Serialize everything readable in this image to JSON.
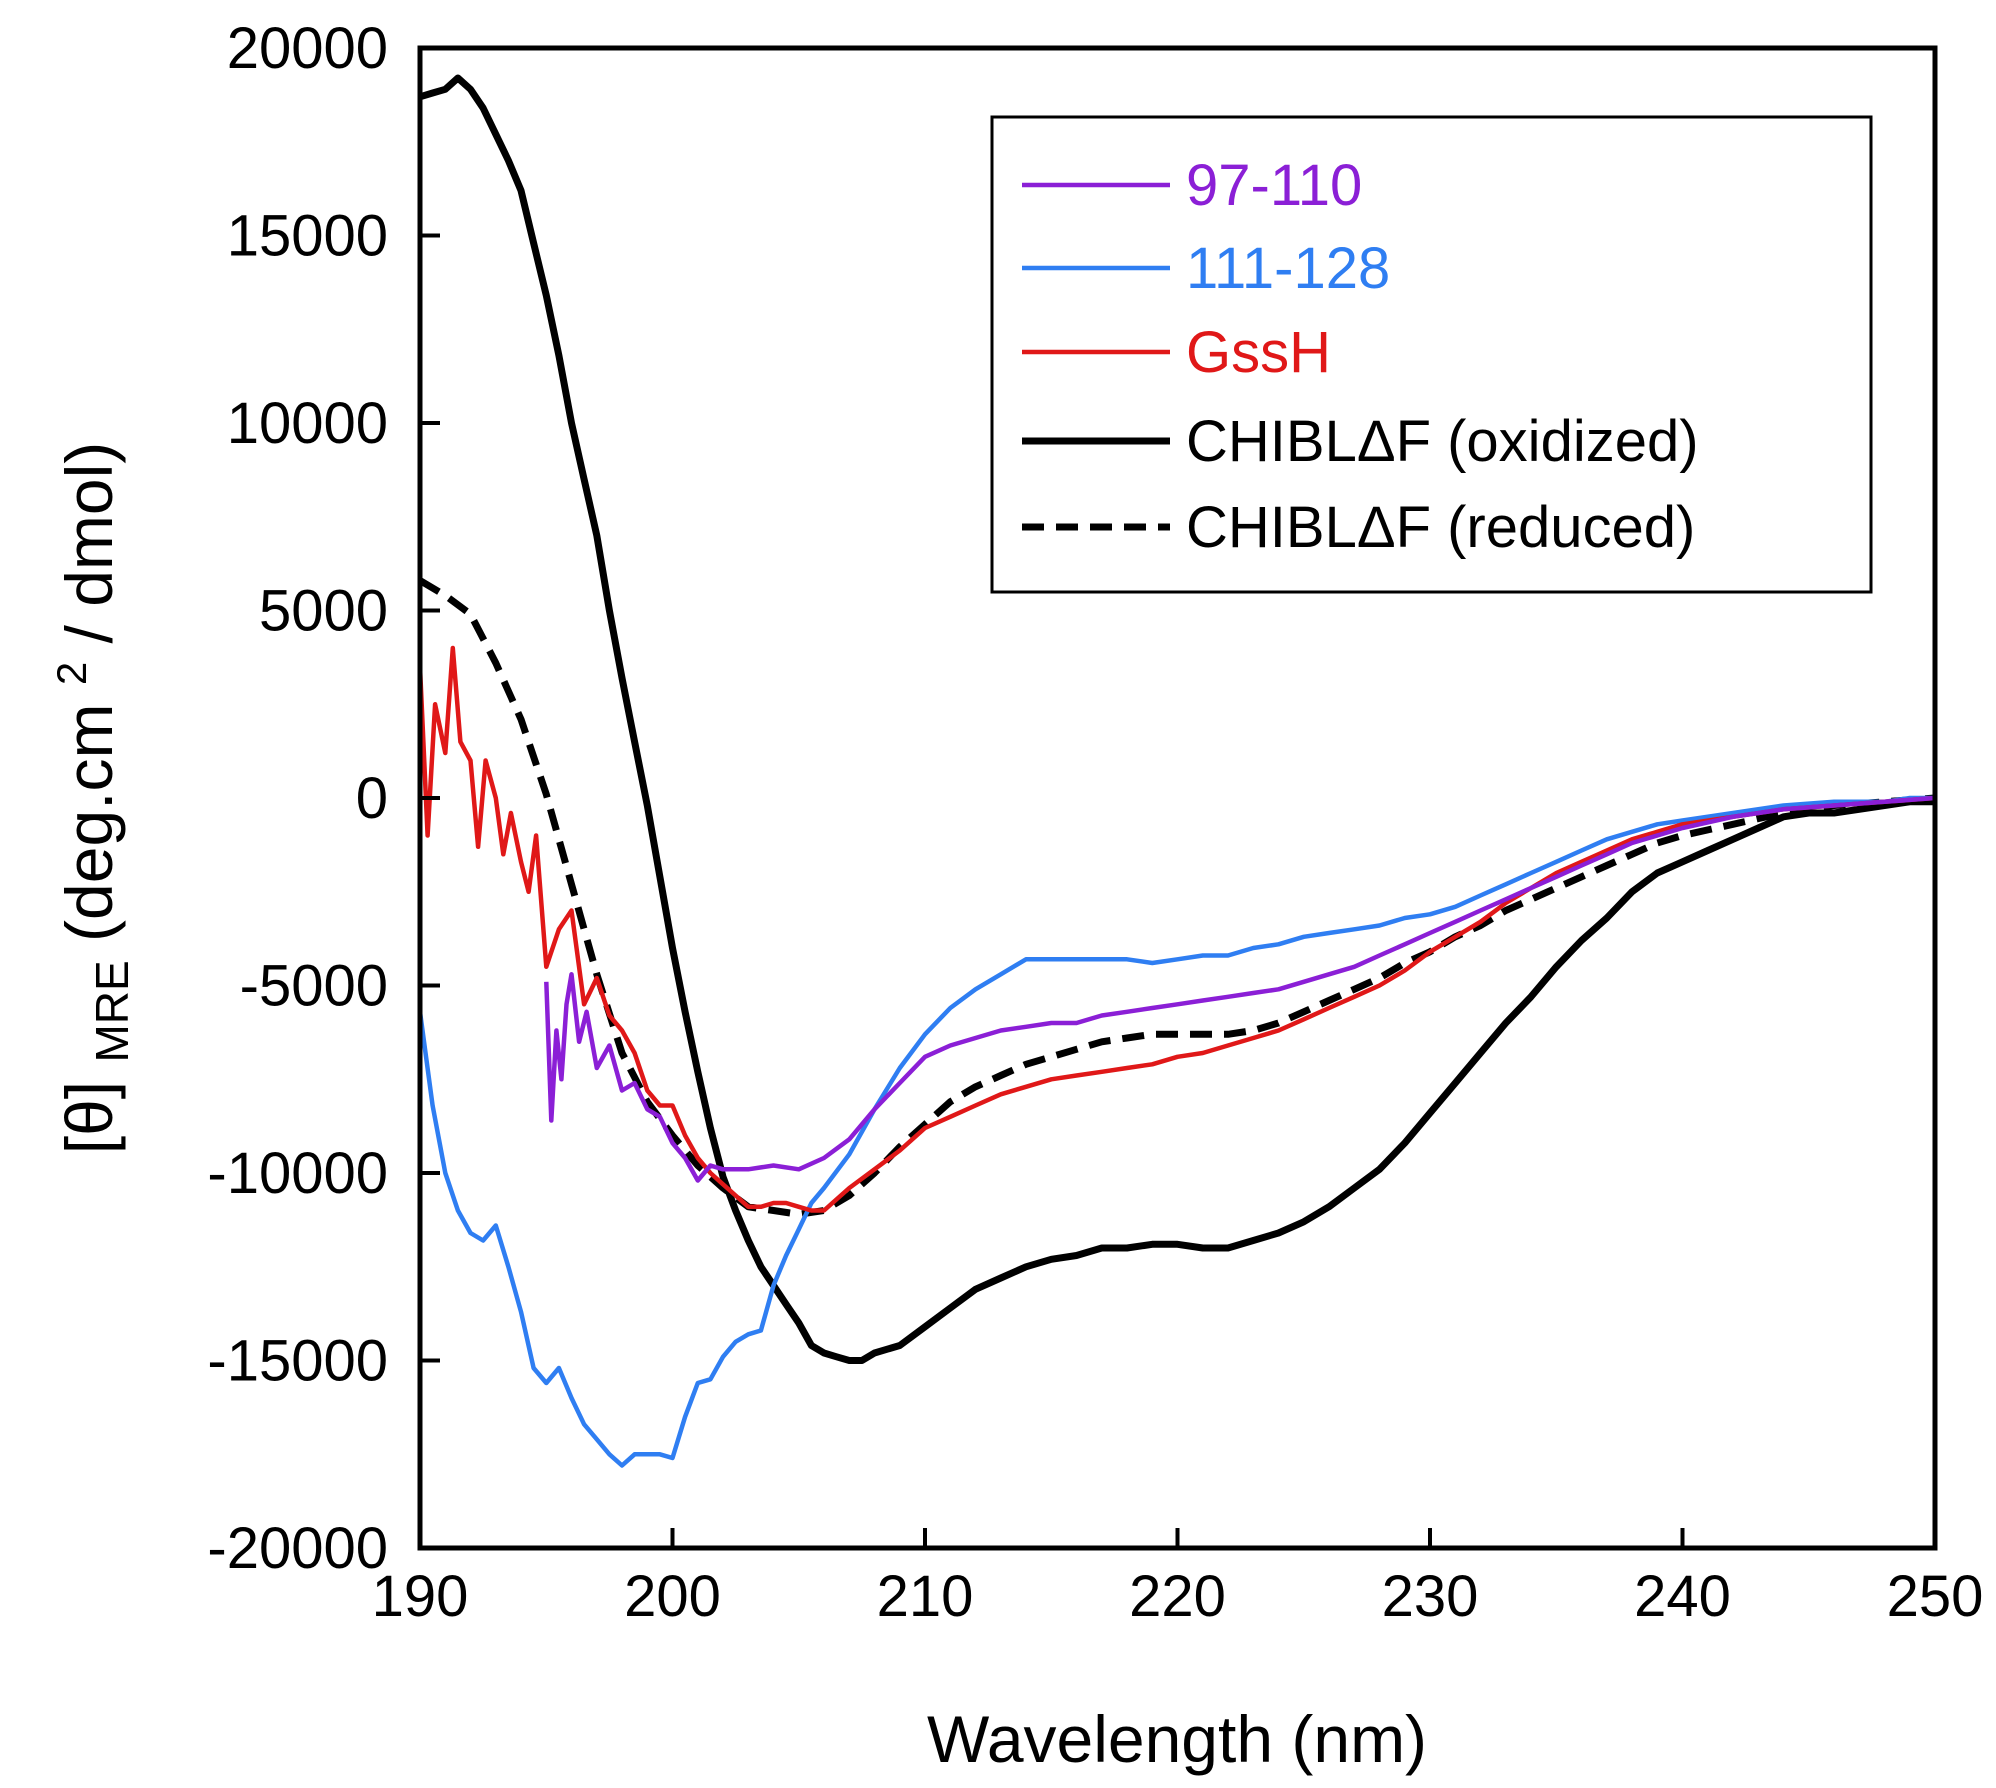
{
  "chart_data": {
    "type": "line",
    "xlabel": "Wavelength (nm)",
    "ylabel": {
      "prefix": "[θ]",
      "subscript": "MRE",
      "body": " (deg.cm",
      "superscript": "2",
      "suffix": " / dmol)"
    },
    "xlim": [
      190,
      250
    ],
    "ylim": [
      -20000,
      20000
    ],
    "x_ticks": [
      190,
      200,
      210,
      220,
      230,
      240,
      250
    ],
    "y_ticks": [
      -20000,
      -15000,
      -10000,
      -5000,
      0,
      5000,
      10000,
      15000,
      20000
    ],
    "grid": false,
    "legend_position": "top-right",
    "series": [
      {
        "name": "97-110",
        "color": "#8b1fd6",
        "style": "solid",
        "x": [
          195.0,
          195.2,
          195.4,
          195.6,
          195.8,
          196.0,
          196.3,
          196.6,
          197.0,
          197.5,
          198.0,
          198.5,
          199.0,
          199.5,
          200.0,
          200.5,
          201.0,
          201.5,
          202.0,
          203.0,
          204.0,
          205.0,
          206.0,
          207.0,
          208.0,
          209.0,
          210.0,
          211.0,
          212.0,
          213.0,
          214.0,
          215.0,
          216.0,
          217.0,
          218.0,
          219.0,
          220.0,
          221.0,
          222.0,
          223.0,
          224.0,
          225.0,
          226.0,
          227.0,
          228.0,
          229.0,
          230.0,
          231.0,
          232.0,
          233.0,
          234.0,
          235.0,
          236.0,
          237.0,
          238.0,
          239.0,
          240.0,
          242.0,
          244.0,
          246.0,
          248.0,
          250.0
        ],
        "y": [
          -4900,
          -8600,
          -6200,
          -7500,
          -5500,
          -4700,
          -6500,
          -5700,
          -7200,
          -6600,
          -7800,
          -7600,
          -8300,
          -8500,
          -9200,
          -9600,
          -10200,
          -9800,
          -9900,
          -9900,
          -9800,
          -9900,
          -9600,
          -9100,
          -8300,
          -7600,
          -6900,
          -6600,
          -6400,
          -6200,
          -6100,
          -6000,
          -6000,
          -5800,
          -5700,
          -5600,
          -5500,
          -5400,
          -5300,
          -5200,
          -5100,
          -4900,
          -4700,
          -4500,
          -4200,
          -3900,
          -3600,
          -3300,
          -3000,
          -2700,
          -2400,
          -2100,
          -1800,
          -1500,
          -1200,
          -1000,
          -800,
          -500,
          -300,
          -200,
          -100,
          0
        ]
      },
      {
        "name": "111-128",
        "color": "#2f7ef2",
        "style": "solid",
        "x": [
          190.0,
          190.5,
          191.0,
          191.5,
          192.0,
          192.5,
          193.0,
          193.5,
          194.0,
          194.5,
          195.0,
          195.5,
          196.0,
          196.5,
          197.0,
          197.5,
          198.0,
          198.5,
          199.0,
          199.5,
          200.0,
          200.5,
          201.0,
          201.5,
          202.0,
          202.5,
          203.0,
          203.5,
          204.0,
          204.5,
          205.0,
          205.5,
          206.0,
          207.0,
          208.0,
          209.0,
          210.0,
          211.0,
          212.0,
          213.0,
          214.0,
          215.0,
          216.0,
          217.0,
          218.0,
          219.0,
          220.0,
          221.0,
          222.0,
          223.0,
          224.0,
          225.0,
          226.0,
          227.0,
          228.0,
          229.0,
          230.0,
          231.0,
          232.0,
          233.0,
          234.0,
          235.0,
          236.0,
          237.0,
          238.0,
          239.0,
          240.0,
          242.0,
          244.0,
          246.0,
          248.0,
          249.0,
          250.0
        ],
        "y": [
          -5700,
          -8200,
          -10000,
          -11000,
          -11600,
          -11800,
          -11400,
          -12500,
          -13700,
          -15200,
          -15600,
          -15200,
          -16000,
          -16700,
          -17100,
          -17500,
          -17800,
          -17500,
          -17500,
          -17500,
          -17600,
          -16500,
          -15600,
          -15500,
          -14900,
          -14500,
          -14300,
          -14200,
          -13000,
          -12200,
          -11500,
          -10800,
          -10400,
          -9500,
          -8300,
          -7200,
          -6300,
          -5600,
          -5100,
          -4700,
          -4300,
          -4300,
          -4300,
          -4300,
          -4300,
          -4400,
          -4300,
          -4200,
          -4200,
          -4000,
          -3900,
          -3700,
          -3600,
          -3500,
          -3400,
          -3200,
          -3100,
          -2900,
          -2600,
          -2300,
          -2000,
          -1700,
          -1400,
          -1100,
          -900,
          -700,
          -600,
          -400,
          -200,
          -100,
          -100,
          0,
          0
        ]
      },
      {
        "name": "GssH",
        "color": "#e01818",
        "style": "solid",
        "x": [
          190.0,
          190.3,
          190.6,
          191.0,
          191.3,
          191.6,
          192.0,
          192.3,
          192.6,
          193.0,
          193.3,
          193.6,
          194.0,
          194.3,
          194.6,
          195.0,
          195.5,
          196.0,
          196.5,
          197.0,
          197.5,
          198.0,
          198.5,
          199.0,
          199.5,
          200.0,
          200.5,
          201.0,
          201.5,
          202.0,
          202.5,
          203.0,
          203.5,
          204.0,
          204.5,
          205.0,
          205.5,
          206.0,
          207.0,
          208.0,
          209.0,
          210.0,
          211.0,
          212.0,
          213.0,
          214.0,
          215.0,
          216.0,
          217.0,
          218.0,
          219.0,
          220.0,
          221.0,
          222.0,
          223.0,
          224.0,
          225.0,
          226.0,
          227.0,
          228.0,
          229.0,
          230.0,
          231.0,
          232.0,
          233.0,
          234.0,
          235.0,
          236.0,
          237.0,
          238.0,
          239.0,
          240.0,
          242.0,
          244.0,
          246.0,
          248.0,
          250.0
        ],
        "y": [
          3500,
          -1000,
          2500,
          1200,
          4000,
          1500,
          1000,
          -1300,
          1000,
          0,
          -1500,
          -400,
          -1700,
          -2500,
          -1000,
          -4500,
          -3500,
          -3000,
          -5500,
          -4800,
          -5800,
          -6200,
          -6800,
          -7800,
          -8200,
          -8200,
          -9000,
          -9600,
          -10000,
          -10300,
          -10600,
          -10900,
          -10900,
          -10800,
          -10800,
          -10900,
          -11000,
          -11000,
          -10400,
          -9900,
          -9400,
          -8800,
          -8500,
          -8200,
          -7900,
          -7700,
          -7500,
          -7400,
          -7300,
          -7200,
          -7100,
          -6900,
          -6800,
          -6600,
          -6400,
          -6200,
          -5900,
          -5600,
          -5300,
          -5000,
          -4600,
          -4100,
          -3700,
          -3300,
          -2800,
          -2400,
          -2000,
          -1700,
          -1400,
          -1100,
          -900,
          -700,
          -500,
          -300,
          -200,
          -100,
          0
        ]
      },
      {
        "name": "CHIBLΔF (oxidized)",
        "color": "#000000",
        "style": "solid",
        "x": [
          190.0,
          190.5,
          191.0,
          191.5,
          192.0,
          192.5,
          193.0,
          193.5,
          194.0,
          194.5,
          195.0,
          195.5,
          196.0,
          196.5,
          197.0,
          197.5,
          198.0,
          198.5,
          199.0,
          199.5,
          200.0,
          200.5,
          201.0,
          201.5,
          202.0,
          202.5,
          203.0,
          203.5,
          204.0,
          204.5,
          205.0,
          205.5,
          206.0,
          206.5,
          207.0,
          207.5,
          208.0,
          209.0,
          210.0,
          211.0,
          212.0,
          213.0,
          214.0,
          215.0,
          216.0,
          217.0,
          218.0,
          219.0,
          220.0,
          221.0,
          222.0,
          223.0,
          224.0,
          225.0,
          226.0,
          227.0,
          228.0,
          229.0,
          230.0,
          231.0,
          232.0,
          233.0,
          234.0,
          235.0,
          236.0,
          237.0,
          238.0,
          239.0,
          240.0,
          241.0,
          242.0,
          243.0,
          244.0,
          245.0,
          246.0,
          247.0,
          248.0,
          249.0,
          250.0
        ],
        "y": [
          18700,
          18800,
          18900,
          19200,
          18900,
          18400,
          17700,
          17000,
          16200,
          14800,
          13400,
          11800,
          10000,
          8500,
          7000,
          5000,
          3200,
          1500,
          -200,
          -2100,
          -4000,
          -5700,
          -7300,
          -8800,
          -10100,
          -11000,
          -11800,
          -12500,
          -13000,
          -13500,
          -14000,
          -14600,
          -14800,
          -14900,
          -15000,
          -15000,
          -14800,
          -14600,
          -14100,
          -13600,
          -13100,
          -12800,
          -12500,
          -12300,
          -12200,
          -12000,
          -12000,
          -11900,
          -11900,
          -12000,
          -12000,
          -11800,
          -11600,
          -11300,
          -10900,
          -10400,
          -9900,
          -9200,
          -8400,
          -7600,
          -6800,
          -6000,
          -5300,
          -4500,
          -3800,
          -3200,
          -2500,
          -2000,
          -1700,
          -1400,
          -1100,
          -800,
          -500,
          -400,
          -400,
          -300,
          -200,
          -100,
          -100
        ]
      },
      {
        "name": "CHIBLΔF (reduced)",
        "color": "#000000",
        "style": "dashed",
        "x": [
          190.0,
          191.0,
          192.0,
          193.0,
          194.0,
          195.0,
          196.0,
          197.0,
          198.0,
          199.0,
          200.0,
          201.0,
          202.0,
          203.0,
          204.0,
          205.0,
          206.0,
          207.0,
          208.0,
          209.0,
          210.0,
          211.0,
          212.0,
          213.0,
          214.0,
          215.0,
          216.0,
          217.0,
          218.0,
          219.0,
          220.0,
          221.0,
          222.0,
          223.0,
          224.0,
          225.0,
          226.0,
          227.0,
          228.0,
          229.0,
          230.0,
          231.0,
          232.0,
          233.0,
          234.0,
          235.0,
          236.0,
          237.0,
          238.0,
          239.0,
          240.0,
          242.0,
          244.0,
          246.0,
          248.0,
          250.0
        ],
        "y": [
          5800,
          5400,
          4900,
          3600,
          2100,
          100,
          -2300,
          -4700,
          -6800,
          -8100,
          -9000,
          -9800,
          -10400,
          -10900,
          -11000,
          -11100,
          -11000,
          -10600,
          -10000,
          -9300,
          -8700,
          -8100,
          -7700,
          -7400,
          -7100,
          -6900,
          -6700,
          -6500,
          -6400,
          -6300,
          -6300,
          -6300,
          -6300,
          -6200,
          -6000,
          -5700,
          -5400,
          -5100,
          -4800,
          -4400,
          -4100,
          -3700,
          -3400,
          -3000,
          -2700,
          -2400,
          -2100,
          -1800,
          -1500,
          -1200,
          -1000,
          -700,
          -400,
          -200,
          -100,
          0
        ]
      }
    ]
  }
}
